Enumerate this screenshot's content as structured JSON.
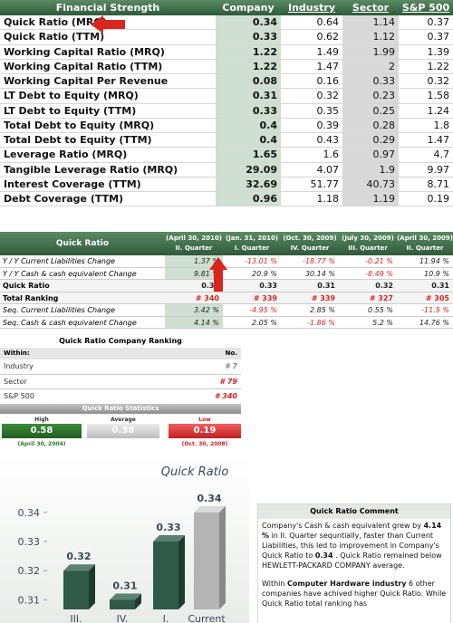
{
  "financial_table": {
    "columns": [
      "Financial Strength",
      "Company",
      "Industry",
      "Sector",
      "S&P 500"
    ],
    "rows": [
      [
        "Quick Ratio (MRQ)",
        0.34,
        0.64,
        1.14,
        0.37
      ],
      [
        "Quick Ratio (TTM)",
        0.33,
        0.62,
        1.12,
        0.37
      ],
      [
        "Working Capital Ratio (MRQ)",
        1.22,
        1.49,
        1.99,
        1.39
      ],
      [
        "Working Capital Ratio (TTM)",
        1.22,
        1.47,
        2,
        1.22
      ],
      [
        "Working Capital Per Revenue",
        0.08,
        0.16,
        0.33,
        0.32
      ],
      [
        "LT Debt to Equity (MRQ)",
        0.31,
        0.32,
        0.23,
        1.58
      ],
      [
        "LT Debt to Equity (TTM)",
        0.33,
        0.35,
        0.25,
        1.24
      ],
      [
        "Total Debt to Equity (MRQ)",
        0.4,
        0.39,
        0.28,
        1.8
      ],
      [
        "Total Debt to Equity (TTM)",
        0.4,
        0.43,
        0.29,
        1.47
      ],
      [
        "Leverage Ratio (MRQ)",
        1.65,
        1.6,
        0.97,
        4.7
      ],
      [
        "Tangible Leverage Ratio (MRQ)",
        29.09,
        4.07,
        1.9,
        9.97
      ],
      [
        "Interest Coverage (TTM)",
        32.69,
        51.77,
        40.73,
        8.71
      ],
      [
        "Debt Coverage (TTM)",
        0.96,
        1.18,
        1.19,
        0.19
      ]
    ]
  },
  "quarterly_table": {
    "title": "Quick Ratio",
    "columns": [
      {
        "date": "(April 30, 2010)",
        "quarter": "II. Quarter"
      },
      {
        "date": "(Jan. 31, 2010)",
        "quarter": "I. Quarter"
      },
      {
        "date": "(Oct. 30, 2009)",
        "quarter": "IV. Quarter"
      },
      {
        "date": "(July 30, 2009)",
        "quarter": "III. Quarter"
      },
      {
        "date": "(April 30, 2009)",
        "quarter": "II. Quarter"
      }
    ],
    "rows": [
      {
        "label": "Y / Y Current Liabilities Change",
        "values": [
          "1.37 %",
          "-13.01 %",
          "-18.77 %",
          "-0.21 %",
          "11.94 %"
        ]
      },
      {
        "label": "Y / Y Cash & cash equivalent Change",
        "values": [
          "9.81 %",
          "20.9 %",
          "30.14 %",
          "-8.49 %",
          "10.9 %"
        ]
      },
      {
        "label": "Quick Ratio",
        "values": [
          0.34,
          0.33,
          0.31,
          0.32,
          0.31
        ]
      },
      {
        "label": "Total Ranking",
        "values": [
          "# 340",
          "# 339",
          "# 339",
          "# 327",
          "# 305"
        ]
      },
      {
        "label": "Seq. Current Liabilities Change",
        "values": [
          "3.42 %",
          "-4.95 %",
          "2.85 %",
          "0.55 %",
          "-11.5 %"
        ]
      },
      {
        "label": "Seq. Cash & cash equivalent Change",
        "values": [
          "4.14 %",
          "2.05 %",
          "-1.86 %",
          "5.2 %",
          "14.76 %"
        ]
      }
    ]
  },
  "ranking": {
    "title": "Quick Ratio Company Ranking",
    "columns": [
      "Within:",
      "No."
    ],
    "rows": [
      {
        "label": "Industry",
        "value": "# 7",
        "color": "#888888"
      },
      {
        "label": "Sector",
        "value": "# 79",
        "color": "#dd2222"
      },
      {
        "label": "S&P 500",
        "value": "# 340",
        "color": "#dd2222"
      }
    ]
  },
  "statistics": {
    "title": "Quick Ratio Statistics",
    "high": {
      "label": "High",
      "value": 0.58,
      "date": "(April 30, 2004)"
    },
    "average": {
      "label": "Average",
      "value": 0.38
    },
    "low": {
      "label": "Low",
      "value": 0.19,
      "date": "(Oct. 30, 2008)"
    }
  },
  "chart_data": {
    "type": "bar",
    "title": "Quick Ratio",
    "categories": [
      "III. Quarter",
      "IV. Quarter",
      "I. Quarter",
      "Current"
    ],
    "values": [
      0.32,
      0.31,
      0.33,
      0.34
    ],
    "colors": [
      "#2f5a47",
      "#2f5a47",
      "#2f5a47",
      "#b4b4b4"
    ],
    "ylim": [
      0.303,
      0.348
    ],
    "yticks": [
      0.31,
      0.32,
      0.33,
      0.34
    ]
  },
  "comment": {
    "title": "Quick Ratio Comment",
    "p1": [
      "Company's Cash & cash equivalent grew by",
      "4.14 %",
      "in II. Quarter sequntially, faster than Current Liabilities, this led to improvement in Company's Quick Ratio to",
      "0.34",
      ". Quick Ratio remained below HEWLETT-PACKARD COMPANY average."
    ],
    "p2": [
      "Within",
      "Computer Hardware industry",
      "6 other companies have achived higher Quick Ratio. While Quick Ratio total ranking has"
    ]
  }
}
